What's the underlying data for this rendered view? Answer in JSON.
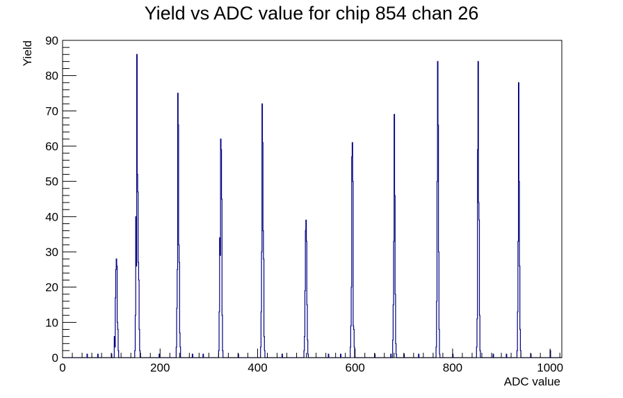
{
  "chart_data": {
    "type": "histogram",
    "title": "Yield vs ADC value for chip 854 chan 26",
    "xlabel": "ADC value",
    "ylabel": "Yield",
    "xlim": [
      0,
      1024
    ],
    "ylim": [
      0,
      90
    ],
    "x_ticks": [
      0,
      200,
      400,
      600,
      800,
      1000
    ],
    "y_ticks": [
      0,
      10,
      20,
      30,
      40,
      50,
      60,
      70,
      80,
      90
    ],
    "grid": false,
    "legend": "none",
    "line_color": "#00007f",
    "series": [
      {
        "bins": [
          [
            50,
            1
          ],
          [
            72,
            1
          ],
          [
            100,
            1
          ],
          [
            106,
            6
          ],
          [
            107,
            3
          ],
          [
            108,
            17
          ],
          [
            109,
            25
          ],
          [
            110,
            28
          ],
          [
            111,
            26
          ],
          [
            112,
            10
          ],
          [
            113,
            8
          ],
          [
            114,
            2
          ],
          [
            148,
            2
          ],
          [
            149,
            12
          ],
          [
            150,
            40
          ],
          [
            151,
            26
          ],
          [
            152,
            86
          ],
          [
            153,
            52
          ],
          [
            154,
            47
          ],
          [
            155,
            27
          ],
          [
            156,
            22
          ],
          [
            157,
            8
          ],
          [
            158,
            2
          ],
          [
            198,
            1
          ],
          [
            233,
            3
          ],
          [
            234,
            14
          ],
          [
            235,
            25
          ],
          [
            236,
            75
          ],
          [
            237,
            66
          ],
          [
            238,
            32
          ],
          [
            239,
            27
          ],
          [
            240,
            7
          ],
          [
            241,
            3
          ],
          [
            266,
            1
          ],
          [
            288,
            1
          ],
          [
            320,
            2
          ],
          [
            321,
            13
          ],
          [
            322,
            34
          ],
          [
            323,
            29
          ],
          [
            324,
            62
          ],
          [
            325,
            59
          ],
          [
            326,
            45
          ],
          [
            327,
            12
          ],
          [
            328,
            2
          ],
          [
            360,
            1
          ],
          [
            406,
            3
          ],
          [
            407,
            13
          ],
          [
            408,
            30
          ],
          [
            409,
            72
          ],
          [
            410,
            61
          ],
          [
            411,
            36
          ],
          [
            412,
            28
          ],
          [
            413,
            6
          ],
          [
            414,
            2
          ],
          [
            450,
            1
          ],
          [
            495,
            2
          ],
          [
            496,
            6
          ],
          [
            497,
            19
          ],
          [
            498,
            36
          ],
          [
            499,
            39
          ],
          [
            500,
            33
          ],
          [
            501,
            15
          ],
          [
            502,
            5
          ],
          [
            503,
            1
          ],
          [
            545,
            1
          ],
          [
            570,
            1
          ],
          [
            590,
            3
          ],
          [
            591,
            9
          ],
          [
            592,
            20
          ],
          [
            593,
            57
          ],
          [
            594,
            61
          ],
          [
            595,
            50
          ],
          [
            596,
            9
          ],
          [
            597,
            8
          ],
          [
            598,
            3
          ],
          [
            640,
            1
          ],
          [
            673,
            1
          ],
          [
            677,
            5
          ],
          [
            678,
            15
          ],
          [
            679,
            33
          ],
          [
            680,
            69
          ],
          [
            681,
            46
          ],
          [
            682,
            18
          ],
          [
            683,
            4
          ],
          [
            684,
            1
          ],
          [
            700,
            1
          ],
          [
            730,
            1
          ],
          [
            766,
            3
          ],
          [
            767,
            16
          ],
          [
            768,
            50
          ],
          [
            769,
            84
          ],
          [
            770,
            66
          ],
          [
            771,
            30
          ],
          [
            772,
            8
          ],
          [
            773,
            1
          ],
          [
            800,
            1
          ],
          [
            849,
            3
          ],
          [
            850,
            11
          ],
          [
            851,
            59
          ],
          [
            852,
            84
          ],
          [
            853,
            44
          ],
          [
            854,
            39
          ],
          [
            855,
            12
          ],
          [
            856,
            2
          ],
          [
            883,
            1
          ],
          [
            910,
            1
          ],
          [
            932,
            2
          ],
          [
            933,
            13
          ],
          [
            934,
            33
          ],
          [
            935,
            78
          ],
          [
            936,
            50
          ],
          [
            937,
            26
          ],
          [
            938,
            8
          ],
          [
            939,
            2
          ],
          [
            960,
            1
          ],
          [
            1000,
            2
          ]
        ]
      }
    ]
  }
}
